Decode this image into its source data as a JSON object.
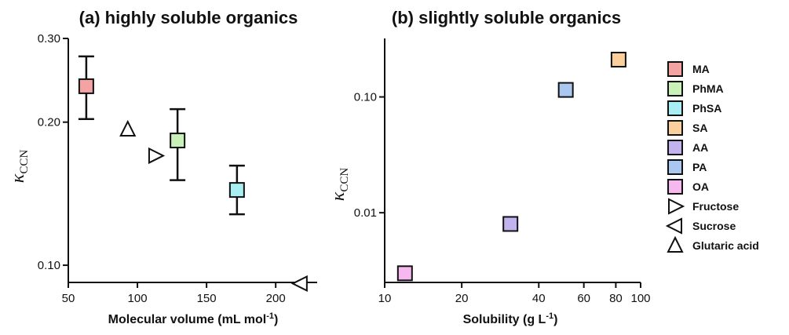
{
  "chart_data": [
    {
      "id": "a",
      "type": "scatter",
      "title": "(a) highly soluble organics",
      "xlabel": "Molecular volume (mL mol",
      "xlabel_superscript": "-1",
      "xlabel_suffix": ")",
      "ylabel": "κ",
      "ylabel_subscript": "CCN",
      "x_scale": "linear",
      "y_scale": "log",
      "xlim": [
        50,
        230
      ],
      "ylim": [
        0.092,
        0.3
      ],
      "x_ticks": [
        50,
        100,
        150,
        200
      ],
      "x_tick_labels": [
        "50",
        "100",
        "150",
        "200"
      ],
      "y_ticks": [
        0.1,
        0.2,
        0.3
      ],
      "y_tick_labels": [
        "0.10",
        "0.20",
        "0.30"
      ],
      "grid": false,
      "series": [
        {
          "name": "MA",
          "marker": "square",
          "color": "#f4a3a3",
          "x": [
            63
          ],
          "y": [
            0.238
          ],
          "y_low": [
            0.203
          ],
          "y_high": [
            0.275
          ]
        },
        {
          "name": "PhMA",
          "marker": "square",
          "color": "#c9f2b8",
          "x": [
            129
          ],
          "y": [
            0.183
          ],
          "y_low": [
            0.151
          ],
          "y_high": [
            0.213
          ]
        },
        {
          "name": "PhSA",
          "marker": "square",
          "color": "#a8eef2",
          "x": [
            172
          ],
          "y": [
            0.144
          ],
          "y_low": [
            0.128
          ],
          "y_high": [
            0.162
          ]
        },
        {
          "name": "Fructose",
          "marker": "triangle-right",
          "color": "#ffffff",
          "x": [
            113
          ],
          "y": [
            0.17
          ]
        },
        {
          "name": "Sucrose",
          "marker": "triangle-left",
          "color": "#ffffff",
          "x": [
            218
          ],
          "y": [
            0.0915
          ]
        },
        {
          "name": "Glutaric acid",
          "marker": "triangle-up",
          "color": "#ffffff",
          "x": [
            93
          ],
          "y": [
            0.193
          ]
        }
      ]
    },
    {
      "id": "b",
      "type": "scatter",
      "title": "(b) slightly soluble organics",
      "xlabel": "Solubility (g L",
      "xlabel_superscript": "-1",
      "xlabel_suffix": ")",
      "ylabel": "κ",
      "ylabel_subscript": "CCN",
      "x_scale": "log",
      "y_scale": "log",
      "xlim": [
        10,
        100
      ],
      "ylim": [
        0.0025,
        0.32
      ],
      "x_ticks": [
        10,
        20,
        40,
        60,
        80,
        100
      ],
      "x_tick_labels": [
        "10",
        "20",
        "40",
        "60",
        "80",
        "100"
      ],
      "y_ticks": [
        0.01,
        0.1
      ],
      "y_tick_labels": [
        "0.01",
        "0.10"
      ],
      "grid": false,
      "series": [
        {
          "name": "SA",
          "marker": "square",
          "color": "#f9cf9e",
          "x": [
            82
          ],
          "y": [
            0.21
          ]
        },
        {
          "name": "AA",
          "marker": "square",
          "color": "#c2b3ee",
          "x": [
            31
          ],
          "y": [
            0.008
          ]
        },
        {
          "name": "PA",
          "marker": "square",
          "color": "#a9c7f0",
          "x": [
            51
          ],
          "y": [
            0.115
          ]
        },
        {
          "name": "OA",
          "marker": "square",
          "color": "#f5b8ef",
          "x": [
            12
          ],
          "y": [
            0.003
          ]
        }
      ]
    }
  ],
  "legend": {
    "placement": "right",
    "items": [
      {
        "label": "MA",
        "marker": "square",
        "color": "#f4a3a3"
      },
      {
        "label": "PhMA",
        "marker": "square",
        "color": "#c9f2b8"
      },
      {
        "label": "PhSA",
        "marker": "square",
        "color": "#a8eef2"
      },
      {
        "label": "SA",
        "marker": "square",
        "color": "#f9cf9e"
      },
      {
        "label": "AA",
        "marker": "square",
        "color": "#c2b3ee"
      },
      {
        "label": "PA",
        "marker": "square",
        "color": "#a9c7f0"
      },
      {
        "label": "OA",
        "marker": "square",
        "color": "#f5b8ef"
      },
      {
        "label": "Fructose",
        "marker": "triangle-right",
        "color": "#ffffff"
      },
      {
        "label": "Sucrose",
        "marker": "triangle-left",
        "color": "#ffffff"
      },
      {
        "label": "Glutaric acid",
        "marker": "triangle-up",
        "color": "#ffffff"
      }
    ]
  }
}
